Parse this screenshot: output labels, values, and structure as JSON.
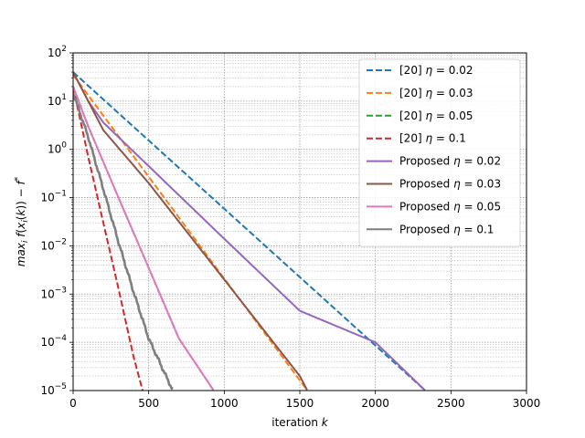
{
  "chart_data": {
    "type": "line",
    "title": "",
    "xlabel": "iteration k",
    "ylabel": "max_i f(x_i(k)) − f*",
    "xlim": [
      0,
      3000
    ],
    "ylim": [
      1e-05,
      100
    ],
    "yscale": "log",
    "grid": true,
    "legend_position": "top-right",
    "x_ticks": [
      {
        "value": 0,
        "label": "0"
      },
      {
        "value": 500,
        "label": "500"
      },
      {
        "value": 1000,
        "label": "1000"
      },
      {
        "value": 1500,
        "label": "1500"
      },
      {
        "value": 2000,
        "label": "2000"
      },
      {
        "value": 2500,
        "label": "2500"
      },
      {
        "value": 3000,
        "label": "3000"
      }
    ],
    "y_ticks": [
      {
        "value": 100,
        "base": "10",
        "exp": "2"
      },
      {
        "value": 10,
        "base": "10",
        "exp": "1"
      },
      {
        "value": 1,
        "base": "10",
        "exp": "0"
      },
      {
        "value": 0.1,
        "base": "10",
        "exp": "−1"
      },
      {
        "value": 0.01,
        "base": "10",
        "exp": "−2"
      },
      {
        "value": 0.001,
        "base": "10",
        "exp": "−3"
      },
      {
        "value": 0.0001,
        "base": "10",
        "exp": "−4"
      },
      {
        "value": 1e-05,
        "base": "10",
        "exp": "−5"
      }
    ],
    "series": [
      {
        "name": "[20] η = 0.02",
        "color": "#1f77b4",
        "dash": true,
        "noisy": false,
        "points": [
          [
            0,
            40
          ],
          [
            2330,
            1e-05
          ]
        ]
      },
      {
        "name": "[20] η = 0.03",
        "color": "#ff7f0e",
        "dash": true,
        "noisy": false,
        "points": [
          [
            0,
            35
          ],
          [
            1550,
            1e-05
          ]
        ]
      },
      {
        "name": "[20] η = 0.05",
        "color": "#2ca02c",
        "dash": true,
        "noisy": false,
        "points": [
          [
            0,
            20
          ],
          [
            100,
            3
          ],
          [
            300,
            0.1
          ],
          [
            500,
            0.0035
          ],
          [
            700,
            0.00012
          ],
          [
            930,
            1e-05
          ]
        ]
      },
      {
        "name": "[20] η = 0.1",
        "color": "#d62728",
        "dash": true,
        "noisy": false,
        "points": [
          [
            0,
            20
          ],
          [
            100,
            0.7
          ],
          [
            200,
            0.03
          ],
          [
            300,
            0.0013
          ],
          [
            400,
            5e-05
          ],
          [
            460,
            1e-05
          ]
        ]
      },
      {
        "name": "Proposed η = 0.02",
        "color": "#9467bd",
        "dash": false,
        "noisy": false,
        "points": [
          [
            0,
            40
          ],
          [
            100,
            10
          ],
          [
            200,
            3.6
          ],
          [
            500,
            0.45
          ],
          [
            1000,
            0.014
          ],
          [
            1500,
            0.00045
          ],
          [
            2000,
            0.0001
          ],
          [
            2330,
            1e-05
          ]
        ]
      },
      {
        "name": "Proposed η = 0.03",
        "color": "#8c564b",
        "dash": false,
        "noisy": false,
        "points": [
          [
            0,
            40
          ],
          [
            100,
            10
          ],
          [
            200,
            2.5
          ],
          [
            500,
            0.2
          ],
          [
            1000,
            0.002
          ],
          [
            1500,
            2e-05
          ],
          [
            1550,
            1e-05
          ]
        ]
      },
      {
        "name": "Proposed η = 0.05",
        "color": "#e377c2",
        "dash": false,
        "noisy": false,
        "points": [
          [
            0,
            20
          ],
          [
            100,
            3
          ],
          [
            300,
            0.1
          ],
          [
            500,
            0.0035
          ],
          [
            700,
            0.00012
          ],
          [
            930,
            1e-05
          ]
        ]
      },
      {
        "name": "Proposed η = 0.1",
        "color": "#7f7f7f",
        "dash": false,
        "noisy": true,
        "points": [
          [
            0,
            15
          ],
          [
            100,
            1.8
          ],
          [
            200,
            0.15
          ],
          [
            300,
            0.012
          ],
          [
            400,
            0.0011
          ],
          [
            500,
            0.00012
          ],
          [
            600,
            2.5e-05
          ],
          [
            660,
            1e-05
          ]
        ]
      }
    ]
  }
}
